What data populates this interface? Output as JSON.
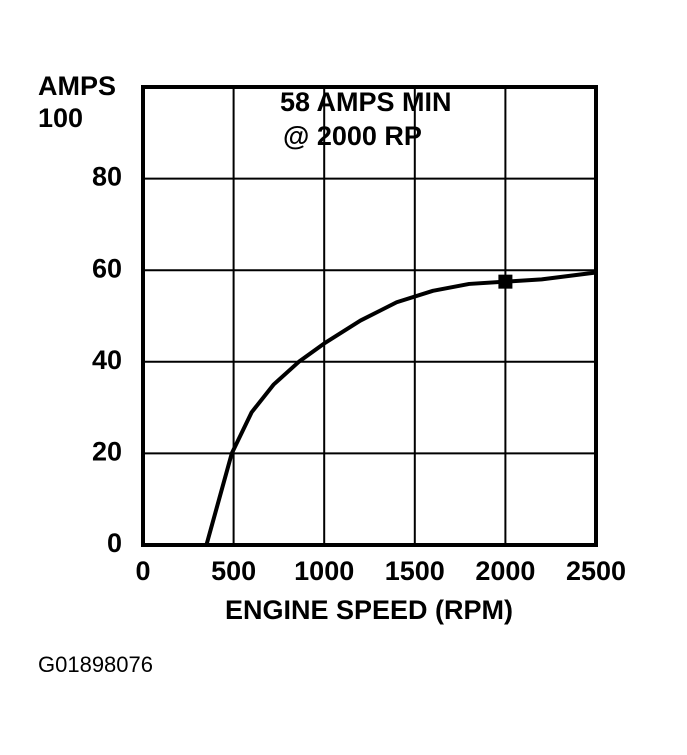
{
  "chart_data": {
    "type": "line",
    "y_label": "AMPS",
    "x_label": "ENGINE SPEED (RPM)",
    "annotation": [
      "58 AMPS MIN",
      "@ 2000 RP"
    ],
    "figure_id": "G01898076",
    "x": [
      350,
      420,
      490,
      600,
      720,
      860,
      1000,
      1200,
      1400,
      1600,
      1800,
      2000,
      2200,
      2500
    ],
    "values": [
      0,
      10,
      20,
      29,
      35,
      40,
      44,
      49,
      53,
      55.5,
      57,
      57.5,
      58,
      59.5
    ],
    "highlight": {
      "x": 2000,
      "y": 57.5
    },
    "color": "#000000",
    "xlim": [
      0,
      2500
    ],
    "xticks": [
      0,
      500,
      1000,
      1500,
      2000,
      2500
    ],
    "ylim": [
      0,
      100
    ],
    "yticks": [
      0,
      20,
      40,
      60,
      80,
      100
    ],
    "grid": true
  }
}
